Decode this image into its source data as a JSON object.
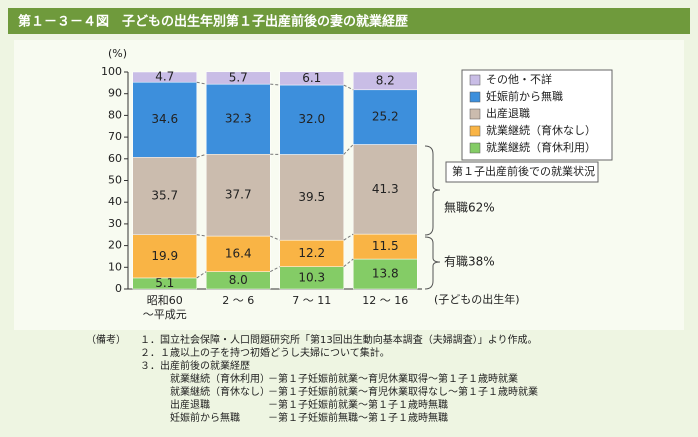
{
  "chart_data": {
    "type": "stacked_bar",
    "title": "第１－３－４図　子どもの出生年別第１子出産前後の妻の就業経歴",
    "y_unit": "(%)",
    "x_label": "(子どもの出生年)",
    "categories": [
      "昭和60\n～平成元",
      "2 ～ 6",
      "7 ～ 11",
      "12 ～ 16"
    ],
    "series": [
      {
        "name": "その他・不詳",
        "color": "#c9bde6",
        "values": [
          4.7,
          5.7,
          6.1,
          8.2
        ],
        "value_labels": [
          "4.7",
          "5.7",
          "6.1",
          "8.2"
        ]
      },
      {
        "name": "妊娠前から無職",
        "color": "#3d8fdc",
        "values": [
          34.6,
          32.3,
          32.0,
          25.2
        ],
        "value_labels": [
          "34.6",
          "32.3",
          "32.0",
          "25.2"
        ]
      },
      {
        "name": "出産退職",
        "color": "#cbbcae",
        "values": [
          35.7,
          37.7,
          39.5,
          41.3
        ],
        "value_labels": [
          "35.7",
          "37.7",
          "39.5",
          "41.3"
        ]
      },
      {
        "name": "就業継続（育休なし）",
        "color": "#f9b445",
        "values": [
          19.9,
          16.4,
          12.2,
          11.5
        ],
        "value_labels": [
          "19.9",
          "16.4",
          "12.2",
          "11.5"
        ]
      },
      {
        "name": "就業継続（育休利用）",
        "color": "#84cc66",
        "values": [
          5.1,
          8.0,
          10.3,
          13.8
        ],
        "value_labels": [
          "5.1",
          "8.0",
          "10.3",
          "13.8"
        ]
      }
    ],
    "ylim": [
      0,
      100
    ],
    "yticks": [
      0,
      10,
      20,
      30,
      40,
      50,
      60,
      70,
      80,
      90,
      100
    ],
    "annotations": {
      "box": "第１子出産前後での就業状況",
      "upper": "無職62%",
      "lower": "有職38%"
    }
  },
  "notes": {
    "label": "（備考）",
    "items": [
      "１．国立社会保障・人口問題研究所「第13回出生動向基本調査（夫婦調査）」より作成。",
      "２．１歳以上の子を持つ初婚どうし夫婦について集計。",
      "３．出産前後の就業経歴"
    ],
    "definitions": [
      [
        "就業継続（育休利用）",
        "－第１子妊娠前就業～育児休業取得～第１子１歳時就業"
      ],
      [
        "就業継続（育休なし）",
        "－第１子妊娠前就業～育児休業取得なし～第１子１歳時就業"
      ],
      [
        "出産退職",
        "－第１子妊娠前就業～第１子１歳時無職"
      ],
      [
        "妊娠前から無職",
        "－第１子妊娠前無職～第１子１歳時無職"
      ]
    ]
  }
}
